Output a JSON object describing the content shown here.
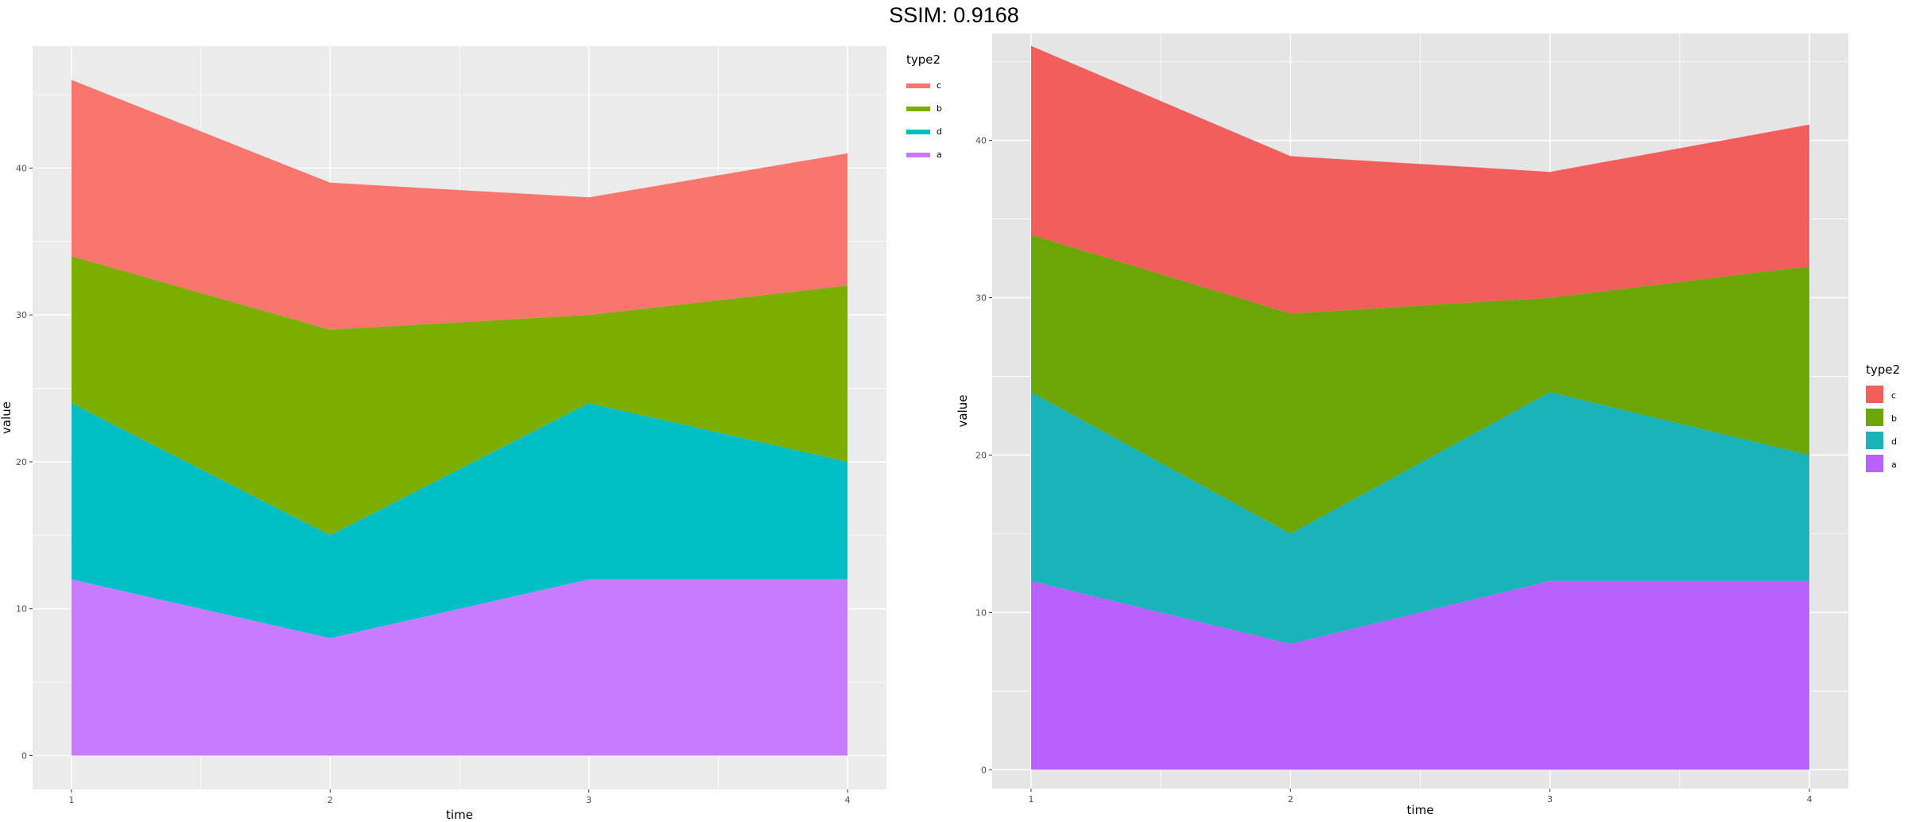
{
  "page": {
    "title": "SSIM: 0.9168"
  },
  "chart_data": [
    {
      "type": "area",
      "stacked": true,
      "x": [
        1,
        2,
        3,
        4
      ],
      "xlabel": "time",
      "ylabel": "value",
      "x_ticks": [
        1,
        2,
        3,
        4
      ],
      "y_ticks": [
        0,
        10,
        20,
        30,
        40
      ],
      "xlim": [
        0.85,
        4.15
      ],
      "ylim": [
        -2.3,
        48.3
      ],
      "legend_title": "type2",
      "legend_position": "top-right",
      "legend_key_style": "line",
      "grid": true,
      "series": [
        {
          "name": "a",
          "values": [
            12,
            8,
            12,
            12
          ],
          "color": "#C77CFF"
        },
        {
          "name": "d",
          "values": [
            12,
            7,
            12,
            8
          ],
          "color": "#00BFC4"
        },
        {
          "name": "b",
          "values": [
            10,
            14,
            6,
            12
          ],
          "color": "#7CAE00"
        },
        {
          "name": "c",
          "values": [
            12,
            10,
            8,
            9
          ],
          "color": "#F8766D"
        }
      ],
      "legend_order": [
        "c",
        "b",
        "d",
        "a"
      ]
    },
    {
      "type": "area",
      "stacked": true,
      "x": [
        1,
        2,
        3,
        4
      ],
      "xlabel": "time",
      "ylabel": "value",
      "x_ticks": [
        1,
        2,
        3,
        4
      ],
      "y_ticks": [
        0,
        10,
        20,
        30,
        40
      ],
      "xlim": [
        0.85,
        4.15
      ],
      "ylim": [
        -1.2,
        46.8
      ],
      "legend_title": "type2",
      "legend_position": "right",
      "legend_key_style": "box",
      "grid": true,
      "series": [
        {
          "name": "a",
          "values": [
            12,
            8,
            12,
            12
          ],
          "color": "#B862FB"
        },
        {
          "name": "d",
          "values": [
            12,
            7,
            12,
            8
          ],
          "color": "#18B4B9"
        },
        {
          "name": "b",
          "values": [
            10,
            14,
            6,
            12
          ],
          "color": "#6CA506"
        },
        {
          "name": "c",
          "values": [
            12,
            10,
            8,
            9
          ],
          "color": "#F25E5B"
        }
      ],
      "legend_order": [
        "c",
        "b",
        "d",
        "a"
      ]
    }
  ]
}
